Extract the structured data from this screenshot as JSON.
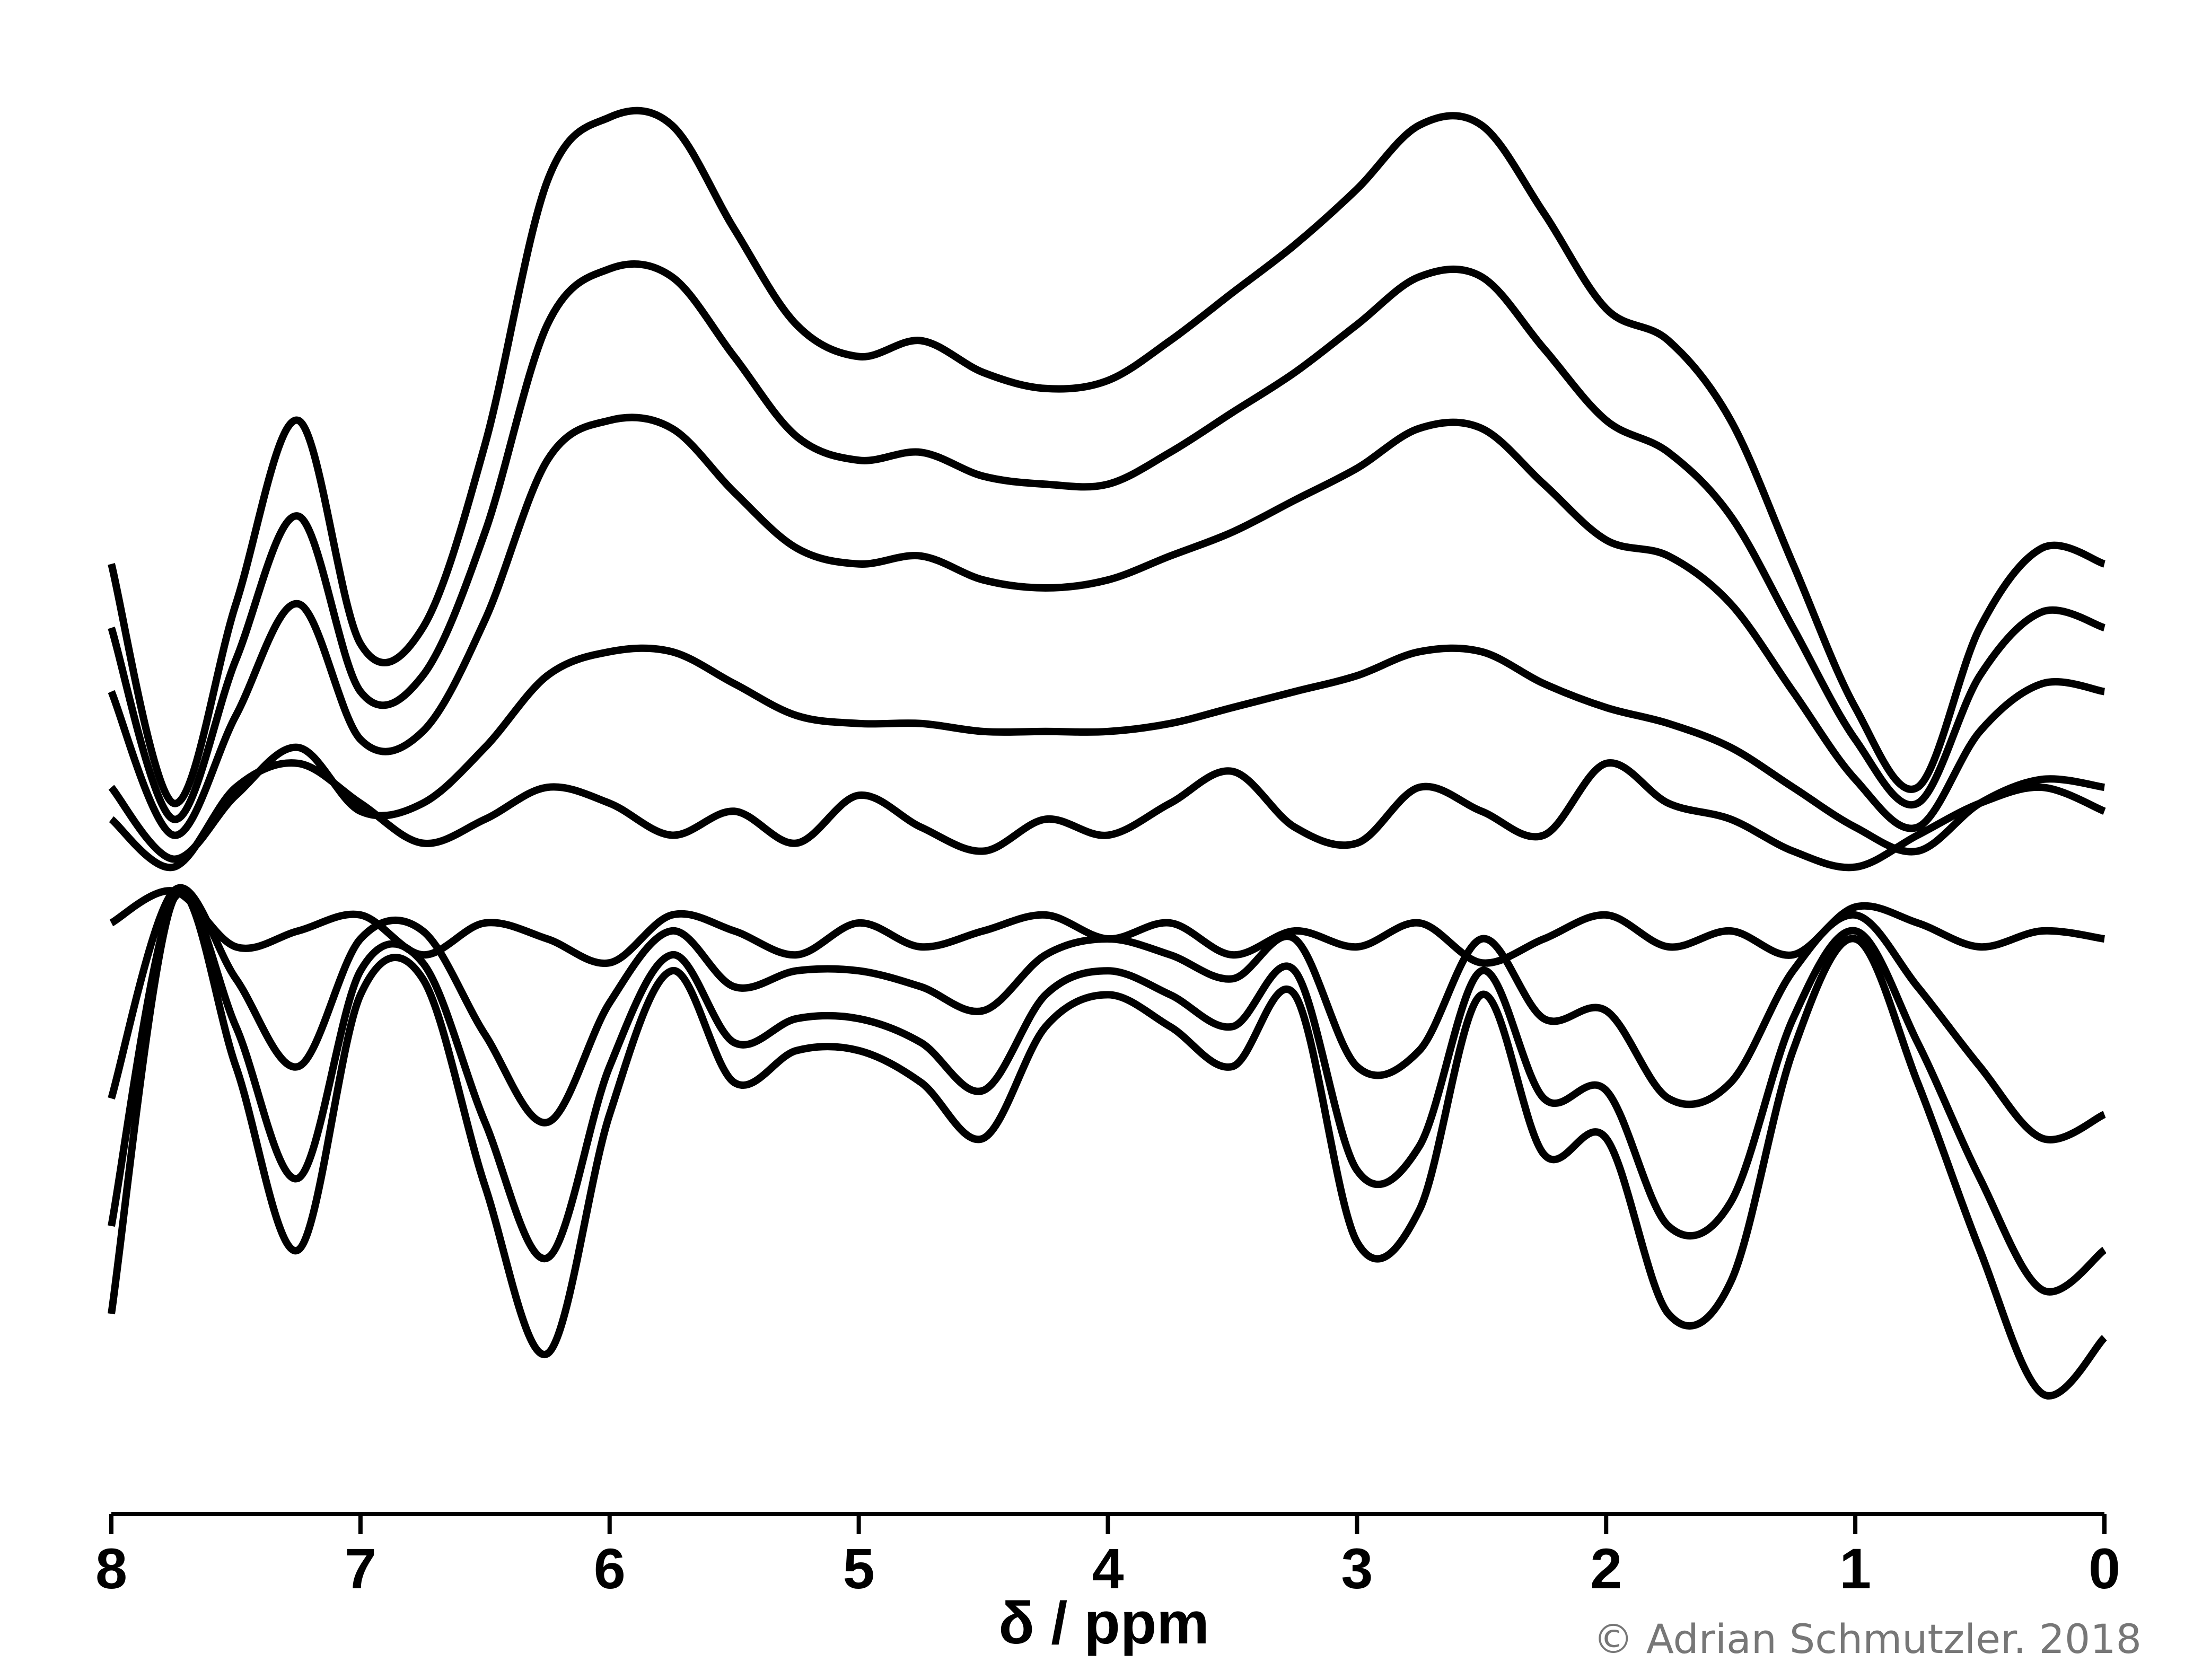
{
  "chart_data": {
    "type": "line",
    "xlabel": "δ / ppm",
    "credit": "© Adrian Schmutzler. 2018",
    "x": [
      8,
      7.75,
      7.5,
      7.25,
      7,
      6.75,
      6.5,
      6.25,
      6,
      5.75,
      5.5,
      5.25,
      5,
      4.75,
      4.5,
      4.25,
      4,
      3.75,
      3.5,
      3.25,
      3,
      2.75,
      2.5,
      2.25,
      2,
      1.75,
      1.5,
      1.25,
      1,
      0.75,
      0.5,
      0.25,
      0
    ],
    "xlim": [
      8,
      0
    ],
    "xticks": [
      0,
      1,
      2,
      3,
      4,
      5,
      6,
      7,
      8
    ],
    "ylim": [
      -0.7,
      1
    ],
    "series": [
      {
        "color": "#000000",
        "values": [
          0.4,
          0.1,
          0.35,
          0.58,
          0.3,
          0.32,
          0.55,
          0.88,
          0.96,
          0.95,
          0.82,
          0.7,
          0.66,
          0.68,
          0.64,
          0.62,
          0.63,
          0.68,
          0.74,
          0.8,
          0.87,
          0.95,
          0.95,
          0.84,
          0.72,
          0.68,
          0.58,
          0.4,
          0.22,
          0.12,
          0.32,
          0.42,
          0.4
        ]
      },
      {
        "color": "#000000",
        "values": [
          0.32,
          0.08,
          0.28,
          0.46,
          0.24,
          0.26,
          0.44,
          0.7,
          0.77,
          0.76,
          0.66,
          0.56,
          0.53,
          0.54,
          0.51,
          0.5,
          0.5,
          0.54,
          0.59,
          0.64,
          0.7,
          0.76,
          0.76,
          0.67,
          0.58,
          0.54,
          0.46,
          0.32,
          0.18,
          0.1,
          0.26,
          0.34,
          0.32
        ]
      },
      {
        "color": "#000000",
        "values": [
          0.24,
          0.06,
          0.21,
          0.35,
          0.18,
          0.19,
          0.33,
          0.53,
          0.58,
          0.57,
          0.49,
          0.42,
          0.4,
          0.41,
          0.38,
          0.37,
          0.38,
          0.41,
          0.44,
          0.48,
          0.52,
          0.57,
          0.57,
          0.5,
          0.43,
          0.41,
          0.35,
          0.24,
          0.13,
          0.07,
          0.19,
          0.25,
          0.24
        ]
      },
      {
        "color": "#000000",
        "values": [
          0.12,
          0.03,
          0.11,
          0.17,
          0.09,
          0.1,
          0.17,
          0.26,
          0.29,
          0.29,
          0.25,
          0.21,
          0.2,
          0.2,
          0.19,
          0.19,
          0.19,
          0.2,
          0.22,
          0.24,
          0.26,
          0.29,
          0.29,
          0.25,
          0.22,
          0.2,
          0.17,
          0.12,
          0.07,
          0.04,
          0.1,
          0.13,
          0.12
        ]
      },
      {
        "color": "#000000",
        "values": [
          0.08,
          0.02,
          0.12,
          0.15,
          0.1,
          0.05,
          0.08,
          0.12,
          0.1,
          0.06,
          0.09,
          0.05,
          0.11,
          0.07,
          0.04,
          0.08,
          0.06,
          0.1,
          0.14,
          0.07,
          0.05,
          0.12,
          0.09,
          0.06,
          0.15,
          0.1,
          0.08,
          0.04,
          0.02,
          0.06,
          0.1,
          0.12,
          0.09
        ]
      },
      {
        "color": "#000000",
        "values": [
          -0.05,
          -0.01,
          -0.08,
          -0.06,
          -0.04,
          -0.09,
          -0.05,
          -0.07,
          -0.1,
          -0.04,
          -0.06,
          -0.09,
          -0.05,
          -0.08,
          -0.06,
          -0.04,
          -0.07,
          -0.05,
          -0.09,
          -0.06,
          -0.08,
          -0.05,
          -0.1,
          -0.07,
          -0.04,
          -0.08,
          -0.06,
          -0.09,
          -0.03,
          -0.05,
          -0.08,
          -0.06,
          -0.07
        ]
      },
      {
        "color": "#000000",
        "values": [
          -0.27,
          -0.01,
          -0.12,
          -0.23,
          -0.07,
          -0.06,
          -0.19,
          -0.3,
          -0.15,
          -0.06,
          -0.13,
          -0.11,
          -0.11,
          -0.13,
          -0.16,
          -0.09,
          -0.07,
          -0.09,
          -0.12,
          -0.07,
          -0.23,
          -0.21,
          -0.07,
          -0.17,
          -0.16,
          -0.27,
          -0.25,
          -0.11,
          -0.04,
          -0.13,
          -0.23,
          -0.32,
          -0.29
        ]
      },
      {
        "color": "#000000",
        "values": [
          -0.43,
          -0.02,
          -0.18,
          -0.37,
          -0.11,
          -0.1,
          -0.3,
          -0.47,
          -0.23,
          -0.09,
          -0.2,
          -0.17,
          -0.17,
          -0.2,
          -0.26,
          -0.14,
          -0.11,
          -0.14,
          -0.18,
          -0.11,
          -0.36,
          -0.33,
          -0.11,
          -0.27,
          -0.26,
          -0.43,
          -0.4,
          -0.17,
          -0.06,
          -0.2,
          -0.37,
          -0.51,
          -0.46
        ]
      },
      {
        "color": "#000000",
        "values": [
          -0.54,
          -0.02,
          -0.23,
          -0.46,
          -0.14,
          -0.12,
          -0.38,
          -0.59,
          -0.29,
          -0.11,
          -0.25,
          -0.21,
          -0.21,
          -0.25,
          -0.32,
          -0.18,
          -0.14,
          -0.18,
          -0.23,
          -0.14,
          -0.45,
          -0.41,
          -0.14,
          -0.34,
          -0.32,
          -0.54,
          -0.5,
          -0.21,
          -0.07,
          -0.25,
          -0.46,
          -0.64,
          -0.57
        ]
      }
    ]
  }
}
